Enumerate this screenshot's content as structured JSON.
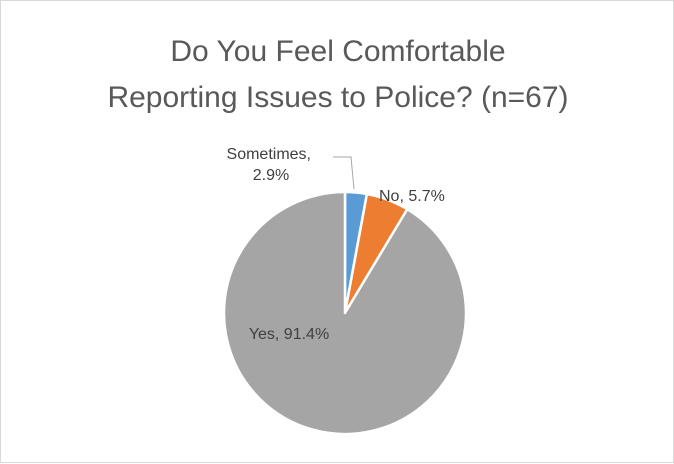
{
  "chart_data": {
    "type": "pie",
    "title_lines": [
      "Do You Feel Comfortable",
      "Reporting Issues to Police? (n=67)"
    ],
    "categories": [
      "Sometimes",
      "No",
      "Yes"
    ],
    "values": [
      2.9,
      5.7,
      91.4
    ],
    "colors": [
      "#5b9bd5",
      "#ed7d31",
      "#a5a5a5"
    ],
    "data_labels": [
      [
        "Sometimes,",
        "2.9%"
      ],
      [
        "No, 5.7%"
      ],
      [
        "Yes, 91.4%"
      ]
    ],
    "start_angle_deg": 0,
    "direction": "clockwise",
    "legend": "none"
  }
}
